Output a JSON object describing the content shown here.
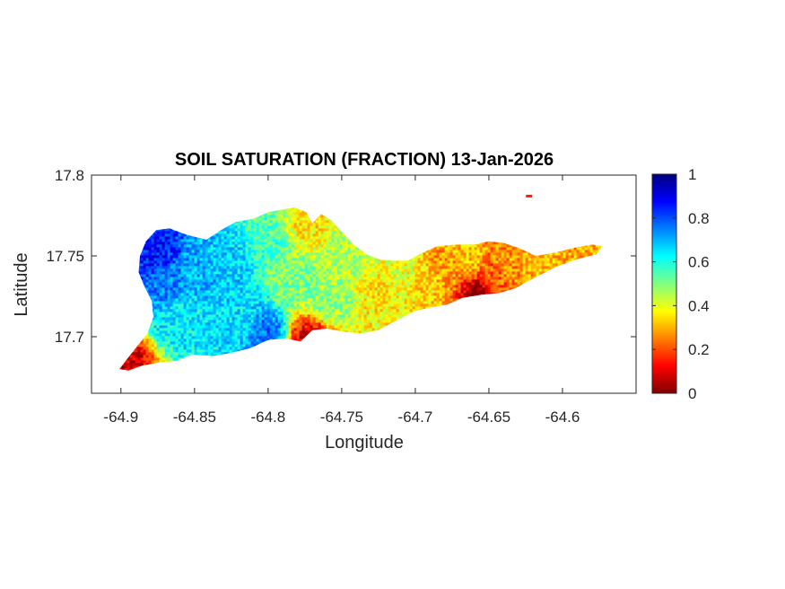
{
  "chart_data": {
    "type": "heatmap",
    "title": "SOIL SATURATION (FRACTION) 13-Jan-2026",
    "xlabel": "Longitude",
    "ylabel": "Latitude",
    "xlim": [
      -64.92,
      -64.55
    ],
    "ylim": [
      17.665,
      17.8
    ],
    "xticks": [
      -64.9,
      -64.85,
      -64.8,
      -64.75,
      -64.7,
      -64.65,
      -64.6
    ],
    "xtick_labels": [
      "-64.9",
      "-64.85",
      "-64.8",
      "-64.75",
      "-64.7",
      "-64.65",
      "-64.6"
    ],
    "yticks": [
      17.7,
      17.75,
      17.8
    ],
    "ytick_labels": [
      "17.7",
      "17.75",
      "17.8"
    ],
    "colormap": "jet",
    "colorbar": {
      "range": [
        0,
        1
      ],
      "ticks": [
        0,
        0.2,
        0.4,
        0.6,
        0.8,
        1
      ],
      "tick_labels": [
        "0",
        "0.2",
        "0.4",
        "0.6",
        "0.8",
        "1"
      ],
      "colors": [
        "#800000",
        "#ff0000",
        "#ff8000",
        "#ffff00",
        "#80ff80",
        "#00ffff",
        "#0080ff",
        "#0000ff",
        "#000080"
      ]
    },
    "grid": false,
    "island_outline": [
      [
        -64.901,
        17.68
      ],
      [
        -64.896,
        17.686
      ],
      [
        -64.889,
        17.694
      ],
      [
        -64.882,
        17.702
      ],
      [
        -64.878,
        17.712
      ],
      [
        -64.879,
        17.722
      ],
      [
        -64.884,
        17.731
      ],
      [
        -64.888,
        17.74
      ],
      [
        -64.887,
        17.75
      ],
      [
        -64.883,
        17.759
      ],
      [
        -64.876,
        17.766
      ],
      [
        -64.867,
        17.767
      ],
      [
        -64.855,
        17.763
      ],
      [
        -64.842,
        17.76
      ],
      [
        -64.832,
        17.766
      ],
      [
        -64.822,
        17.771
      ],
      [
        -64.81,
        17.773
      ],
      [
        -64.8,
        17.777
      ],
      [
        -64.788,
        17.779
      ],
      [
        -64.782,
        17.78
      ],
      [
        -64.774,
        17.777
      ],
      [
        -64.77,
        17.77
      ],
      [
        -64.764,
        17.776
      ],
      [
        -64.757,
        17.772
      ],
      [
        -64.75,
        17.765
      ],
      [
        -64.742,
        17.757
      ],
      [
        -64.733,
        17.751
      ],
      [
        -64.725,
        17.748
      ],
      [
        -64.715,
        17.747
      ],
      [
        -64.705,
        17.747
      ],
      [
        -64.695,
        17.752
      ],
      [
        -64.685,
        17.756
      ],
      [
        -64.672,
        17.757
      ],
      [
        -64.66,
        17.757
      ],
      [
        -64.65,
        17.759
      ],
      [
        -64.64,
        17.758
      ],
      [
        -64.63,
        17.755
      ],
      [
        -64.618,
        17.75
      ],
      [
        -64.605,
        17.752
      ],
      [
        -64.592,
        17.755
      ],
      [
        -64.58,
        17.757
      ],
      [
        -64.573,
        17.756
      ],
      [
        -64.577,
        17.751
      ],
      [
        -64.59,
        17.748
      ],
      [
        -64.605,
        17.743
      ],
      [
        -64.62,
        17.736
      ],
      [
        -64.632,
        17.73
      ],
      [
        -64.643,
        17.727
      ],
      [
        -64.655,
        17.726
      ],
      [
        -64.668,
        17.724
      ],
      [
        -64.678,
        17.72
      ],
      [
        -64.69,
        17.718
      ],
      [
        -64.7,
        17.716
      ],
      [
        -64.713,
        17.71
      ],
      [
        -64.725,
        17.704
      ],
      [
        -64.737,
        17.702
      ],
      [
        -64.748,
        17.703
      ],
      [
        -64.76,
        17.705
      ],
      [
        -64.77,
        17.704
      ],
      [
        -64.778,
        17.697
      ],
      [
        -64.788,
        17.699
      ],
      [
        -64.8,
        17.698
      ],
      [
        -64.812,
        17.693
      ],
      [
        -64.825,
        17.69
      ],
      [
        -64.838,
        17.688
      ],
      [
        -64.852,
        17.689
      ],
      [
        -64.862,
        17.685
      ],
      [
        -64.874,
        17.684
      ],
      [
        -64.886,
        17.682
      ],
      [
        -64.895,
        17.679
      ]
    ],
    "moisture_anchors": [
      {
        "lon": -64.878,
        "lat": 17.752,
        "value": 0.86
      },
      {
        "lon": -64.87,
        "lat": 17.735,
        "value": 0.75
      },
      {
        "lon": -64.86,
        "lat": 17.712,
        "value": 0.64
      },
      {
        "lon": -64.848,
        "lat": 17.74,
        "value": 0.7
      },
      {
        "lon": -64.828,
        "lat": 17.748,
        "value": 0.67
      },
      {
        "lon": -64.82,
        "lat": 17.71,
        "value": 0.66
      },
      {
        "lon": -64.803,
        "lat": 17.702,
        "value": 0.76
      },
      {
        "lon": -64.8,
        "lat": 17.763,
        "value": 0.55
      },
      {
        "lon": -64.783,
        "lat": 17.735,
        "value": 0.5
      },
      {
        "lon": -64.775,
        "lat": 17.77,
        "value": 0.36
      },
      {
        "lon": -64.758,
        "lat": 17.723,
        "value": 0.48
      },
      {
        "lon": -64.745,
        "lat": 17.752,
        "value": 0.45
      },
      {
        "lon": -64.725,
        "lat": 17.728,
        "value": 0.36
      },
      {
        "lon": -64.71,
        "lat": 17.738,
        "value": 0.4
      },
      {
        "lon": -64.695,
        "lat": 17.735,
        "value": 0.34
      },
      {
        "lon": -64.68,
        "lat": 17.742,
        "value": 0.28
      },
      {
        "lon": -64.665,
        "lat": 17.748,
        "value": 0.32
      },
      {
        "lon": -64.65,
        "lat": 17.738,
        "value": 0.22
      },
      {
        "lon": -64.635,
        "lat": 17.745,
        "value": 0.27
      },
      {
        "lon": -64.615,
        "lat": 17.746,
        "value": 0.32
      },
      {
        "lon": -64.592,
        "lat": 17.752,
        "value": 0.3
      },
      {
        "lon": -64.9,
        "lat": 17.683,
        "value": 0.08
      },
      {
        "lon": -64.773,
        "lat": 17.698,
        "value": 0.1
      },
      {
        "lon": -64.658,
        "lat": 17.728,
        "value": 0.05
      }
    ],
    "small_islet": {
      "lon": -64.623,
      "lat": 17.787,
      "value": 0.15
    }
  }
}
